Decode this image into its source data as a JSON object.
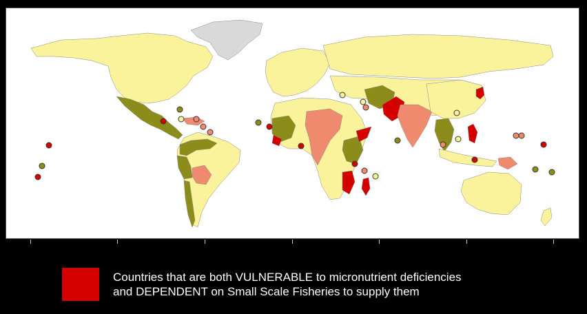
{
  "colors": {
    "both": "#d40000",
    "vulnerable_high": "#f08a6e",
    "dependent": "#8b8c1a",
    "low": "#fbf39b",
    "no_data": "#d9d9d9",
    "ocean": "#ffffff",
    "background": "#000000"
  },
  "legend": {
    "swatch_color": "#d40000",
    "line1": "Countries that are both VULNERABLE to micronutrient deficiencies",
    "line2": "and DEPENDENT on Small Scale Fisheries to supply them"
  }
}
